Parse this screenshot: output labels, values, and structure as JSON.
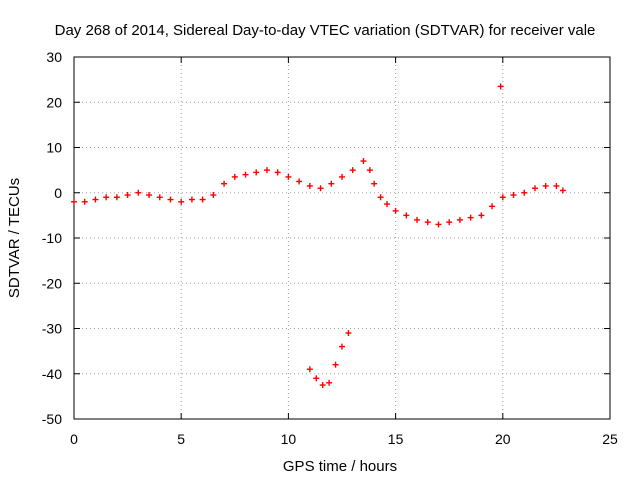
{
  "chart_data": {
    "type": "scatter",
    "title": "Day 268 of 2014, Sidereal Day-to-day VTEC variation (SDTVAR) for receiver vale",
    "xlabel": "GPS time / hours",
    "ylabel": "SDTVAR / TECUs",
    "xlim": [
      0,
      25
    ],
    "ylim": [
      -50,
      30
    ],
    "xticks": [
      0,
      5,
      10,
      15,
      20,
      25
    ],
    "yticks": [
      -50,
      -40,
      -30,
      -20,
      -10,
      0,
      10,
      20,
      30
    ],
    "grid": true,
    "marker_color": "#ff0000",
    "series": [
      {
        "name": "SDTVAR",
        "x": [
          0.0,
          0.5,
          1.0,
          1.5,
          2.0,
          2.5,
          3.0,
          3.5,
          4.0,
          4.5,
          5.0,
          5.5,
          6.0,
          6.5,
          7.0,
          7.5,
          8.0,
          8.5,
          9.0,
          9.5,
          10.0,
          10.5,
          11.0,
          11.5,
          12.0,
          12.5,
          13.0,
          13.5,
          13.8,
          14.0,
          14.3,
          14.6,
          15.0,
          15.5,
          16.0,
          16.5,
          17.0,
          17.5,
          18.0,
          18.5,
          19.0,
          19.5,
          20.0,
          20.5,
          21.0,
          21.5,
          22.0,
          22.5,
          22.8,
          11.0,
          11.3,
          11.6,
          11.9,
          12.2,
          12.5,
          12.8,
          19.9
        ],
        "y": [
          -2,
          -2,
          -1.5,
          -1,
          -1,
          -0.5,
          0,
          -0.5,
          -1,
          -1.5,
          -2,
          -1.5,
          -1.5,
          -0.5,
          2,
          3.5,
          4,
          4.5,
          5,
          4.5,
          3.5,
          2.5,
          1.5,
          1,
          2,
          3.5,
          5,
          7,
          5,
          2,
          -1,
          -2.5,
          -4,
          -5,
          -6,
          -6.5,
          -7,
          -6.5,
          -6,
          -5.5,
          -5,
          -3,
          -1,
          -0.5,
          0,
          1,
          1.5,
          1.5,
          0.5,
          -39,
          -41,
          -42.5,
          -42,
          -38,
          -34,
          -31,
          23.5
        ]
      }
    ]
  }
}
